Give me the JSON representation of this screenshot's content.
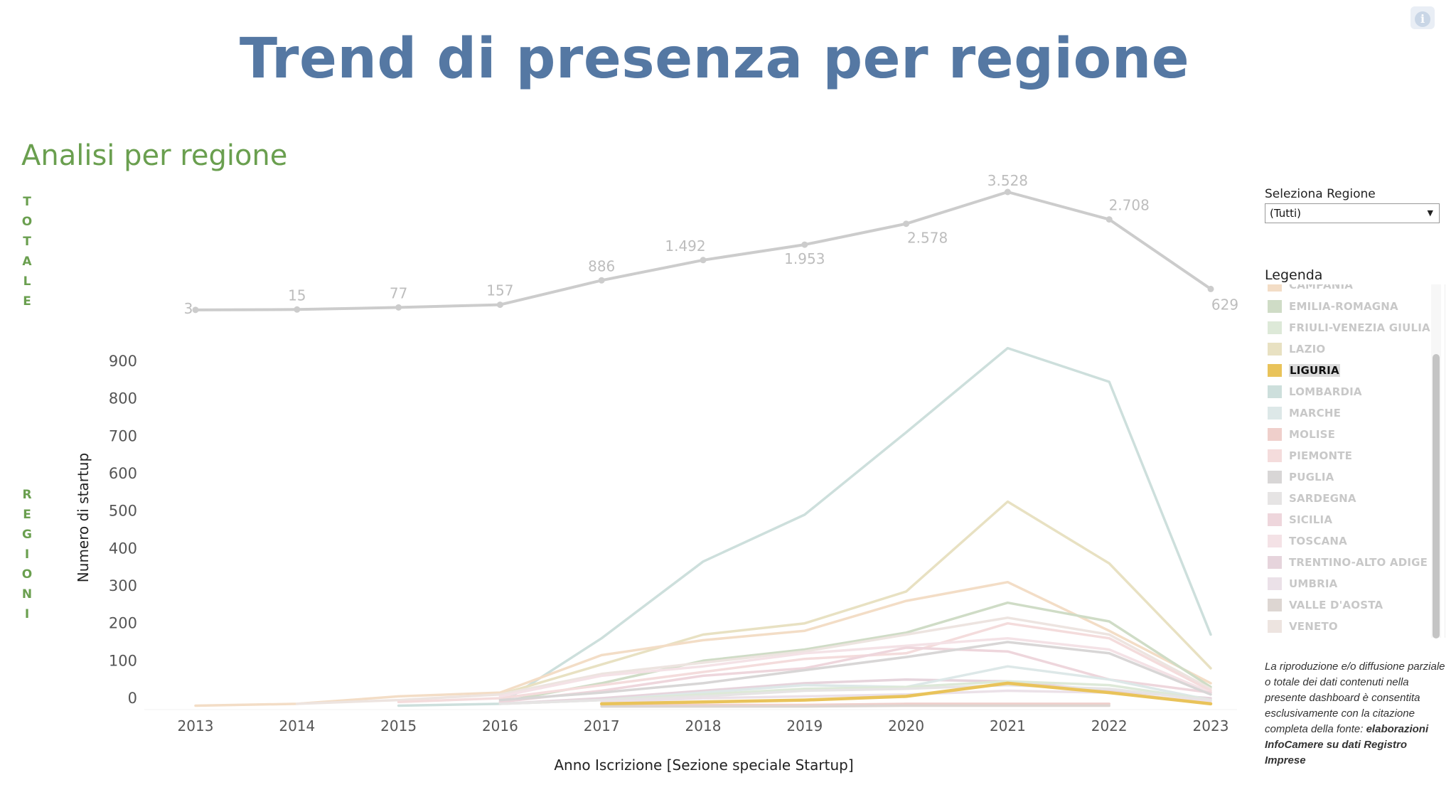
{
  "header": {
    "title": "Trend di presenza per regione",
    "subtitle": "Analisi per regione",
    "info_icon": "info-icon"
  },
  "side_labels": {
    "totale": [
      "T",
      "O",
      "T",
      "A",
      "L",
      "E"
    ],
    "regioni": [
      "R",
      "E",
      "G",
      "I",
      "O",
      "N",
      "I"
    ]
  },
  "filter": {
    "label": "Seleziona Regione",
    "value": "(Tutti)"
  },
  "legend": {
    "title": "Legenda",
    "items": [
      {
        "label": "CAMPANIA",
        "color": "#f3ddc6",
        "active": false
      },
      {
        "label": "EMILIA-ROMAGNA",
        "color": "#cfdcc6",
        "active": false
      },
      {
        "label": "FRIULI-VENEZIA GIULIA",
        "color": "#dde9d8",
        "active": false
      },
      {
        "label": "LAZIO",
        "color": "#e8e1c2",
        "active": false
      },
      {
        "label": "LIGURIA",
        "color": "#e9c35a",
        "active": true
      },
      {
        "label": "LOMBARDIA",
        "color": "#cddfdc",
        "active": false
      },
      {
        "label": "MARCHE",
        "color": "#dde8e8",
        "active": false
      },
      {
        "label": "MOLISE",
        "color": "#efcfcb",
        "active": false
      },
      {
        "label": "PIEMONTE",
        "color": "#f4dcdc",
        "active": false
      },
      {
        "label": "PUGLIA",
        "color": "#d8d6d6",
        "active": false
      },
      {
        "label": "SARDEGNA",
        "color": "#e6e4e4",
        "active": false
      },
      {
        "label": "SICILIA",
        "color": "#eed6dc",
        "active": false
      },
      {
        "label": "TOSCANA",
        "color": "#f4e2e6",
        "active": false
      },
      {
        "label": "TRENTINO-ALTO ADIGE",
        "color": "#e6d4dc",
        "active": false
      },
      {
        "label": "UMBRIA",
        "color": "#ebe1e8",
        "active": false
      },
      {
        "label": "VALLE D'AOSTA",
        "color": "#ddd6d2",
        "active": false
      },
      {
        "label": "VENETO",
        "color": "#ede4e0",
        "active": false
      }
    ]
  },
  "note": {
    "text": "La riproduzione e/o diffusione parziale o totale dei dati contenuti nella presente dashboard è consentita esclusivamente con la citazione completa della fonte: ",
    "source": "elaborazioni InfoCamere su dati Registro Imprese"
  },
  "chart_data": [
    {
      "type": "line",
      "title": "TOTALE",
      "x": [
        2013,
        2014,
        2015,
        2016,
        2017,
        2018,
        2019,
        2020,
        2021,
        2022,
        2023
      ],
      "values": [
        3,
        15,
        77,
        157,
        886,
        1492,
        1953,
        2578,
        3528,
        2708,
        629
      ],
      "labels": [
        "3",
        "15",
        "77",
        "157",
        "886",
        "1.492",
        "1.953",
        "2.578",
        "3.528",
        "2.708",
        "629"
      ],
      "color": "#cccccc"
    },
    {
      "type": "line",
      "title": "REGIONI",
      "xlabel": "Anno Iscrizione [Sezione speciale Startup]",
      "ylabel": "Numero di startup",
      "x": [
        2013,
        2014,
        2015,
        2016,
        2017,
        2018,
        2019,
        2020,
        2021,
        2022,
        2023
      ],
      "yticks": [
        0,
        100,
        200,
        300,
        400,
        500,
        600,
        700,
        800,
        900
      ],
      "ylim": [
        -25,
        950
      ],
      "grid": false,
      "series": [
        {
          "name": "LOMBARDIA",
          "color": "#cddfdc",
          "values": [
            null,
            null,
            -20,
            -15,
            160,
            365,
            490,
            710,
            935,
            845,
            170
          ]
        },
        {
          "name": "LAZIO",
          "color": "#e8e1c2",
          "values": [
            null,
            null,
            null,
            10,
            90,
            170,
            200,
            285,
            525,
            360,
            80
          ]
        },
        {
          "name": "CAMPANIA",
          "color": "#f3ddc6",
          "values": [
            -20,
            -15,
            5,
            15,
            115,
            155,
            180,
            260,
            310,
            180,
            40
          ]
        },
        {
          "name": "EMILIA-ROMAGNA",
          "color": "#cfdcc6",
          "values": [
            null,
            null,
            null,
            -10,
            40,
            100,
            130,
            175,
            255,
            205,
            30
          ]
        },
        {
          "name": "VENETO",
          "color": "#ede4e0",
          "values": [
            null,
            -15,
            -5,
            10,
            65,
            95,
            125,
            170,
            215,
            170,
            25
          ]
        },
        {
          "name": "PIEMONTE",
          "color": "#f4dcdc",
          "values": [
            null,
            null,
            -10,
            0,
            35,
            70,
            105,
            120,
            200,
            160,
            20
          ]
        },
        {
          "name": "TOSCANA",
          "color": "#f4e2e6",
          "values": [
            null,
            null,
            null,
            5,
            60,
            85,
            120,
            140,
            160,
            130,
            15
          ]
        },
        {
          "name": "SICILIA",
          "color": "#eed6dc",
          "values": [
            null,
            null,
            null,
            -10,
            20,
            60,
            80,
            135,
            125,
            50,
            15
          ]
        },
        {
          "name": "PUGLIA",
          "color": "#d8d6d6",
          "values": [
            null,
            null,
            null,
            -5,
            15,
            40,
            75,
            110,
            150,
            120,
            10
          ]
        },
        {
          "name": "TRENTINO-ALTO ADIGE",
          "color": "#e6d4dc",
          "values": [
            null,
            null,
            null,
            -15,
            0,
            20,
            40,
            50,
            45,
            20,
            0
          ]
        },
        {
          "name": "MARCHE",
          "color": "#dde8e8",
          "values": [
            null,
            null,
            null,
            -15,
            -5,
            15,
            35,
            30,
            85,
            50,
            -5
          ]
        },
        {
          "name": "FRIULI-VENEZIA GIULIA",
          "color": "#dde9d8",
          "values": [
            null,
            null,
            null,
            -15,
            -5,
            10,
            25,
            30,
            45,
            35,
            -5
          ]
        },
        {
          "name": "SARDEGNA",
          "color": "#e6e4e4",
          "values": [
            null,
            null,
            null,
            -15,
            -5,
            5,
            20,
            25,
            35,
            25,
            -5
          ]
        },
        {
          "name": "UMBRIA",
          "color": "#ebe1e8",
          "values": [
            null,
            null,
            null,
            null,
            -10,
            0,
            5,
            10,
            20,
            15,
            -10
          ]
        },
        {
          "name": "MOLISE",
          "color": "#efcfcb",
          "values": [
            null,
            null,
            null,
            null,
            -20,
            -18,
            -18,
            -15,
            -15,
            -15,
            null
          ]
        },
        {
          "name": "VALLE D'AOSTA",
          "color": "#ddd6d2",
          "values": [
            null,
            null,
            null,
            null,
            -22,
            -22,
            -22,
            -20,
            -20,
            -20,
            null
          ]
        },
        {
          "name": "LIGURIA",
          "color": "#e9c35a",
          "values": [
            null,
            null,
            null,
            null,
            -15,
            -10,
            -5,
            5,
            40,
            15,
            -15
          ]
        }
      ]
    }
  ]
}
